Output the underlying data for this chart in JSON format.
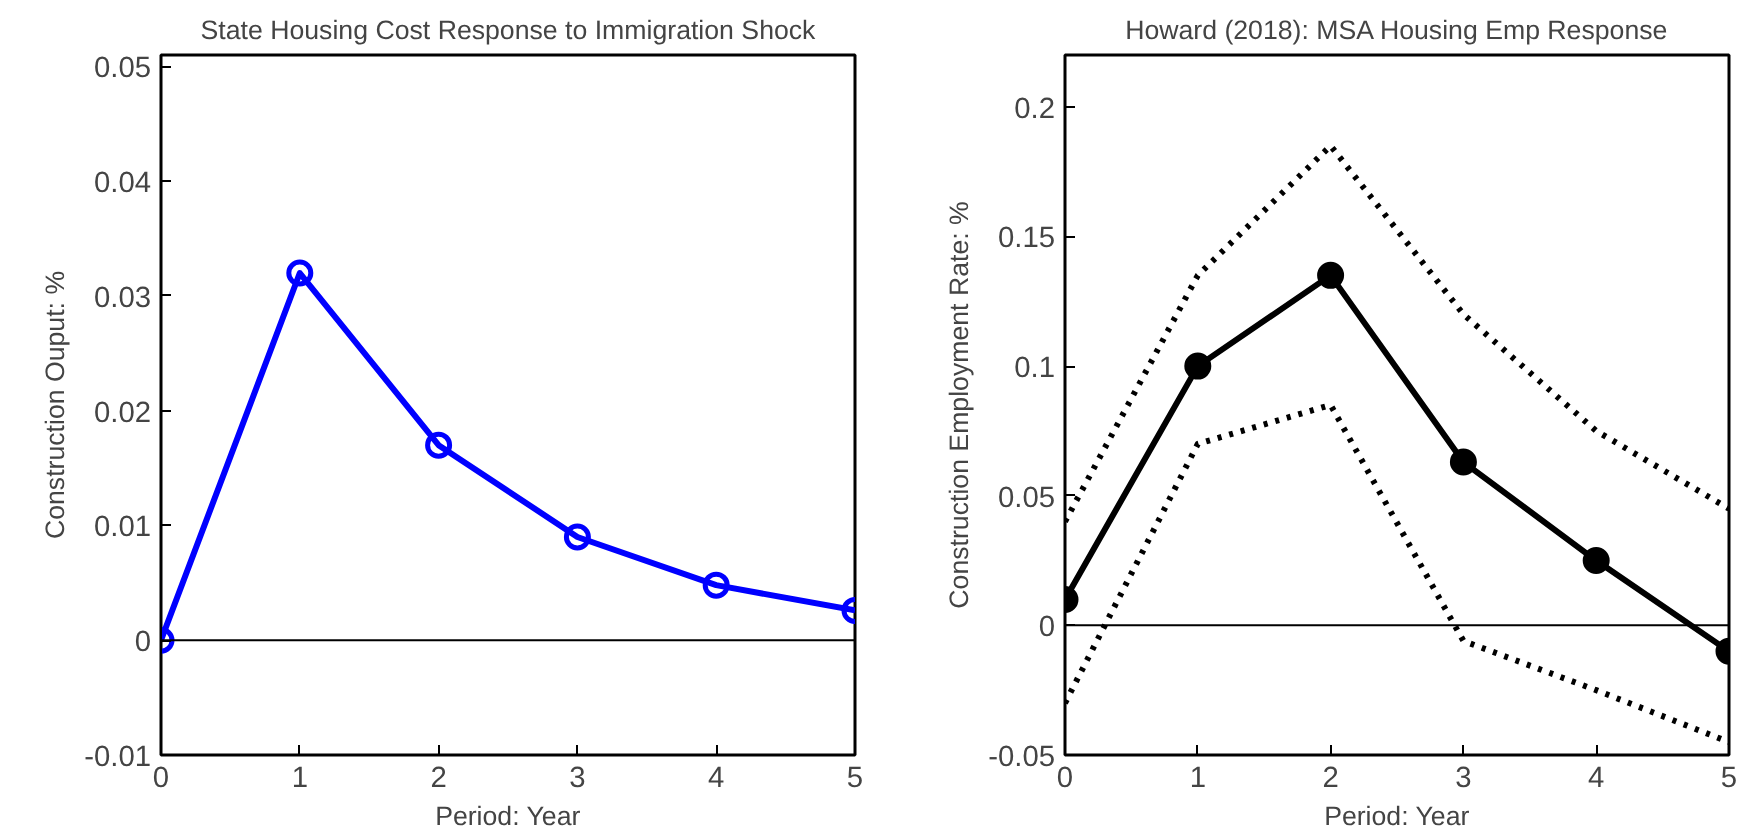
{
  "chart_data": [
    {
      "type": "line",
      "title": "State Housing Cost Response to Immigration Shock",
      "xlabel": "Period: Year",
      "ylabel": "Construction Ouput: %",
      "x": [
        0,
        1,
        2,
        3,
        4,
        5
      ],
      "series": [
        {
          "color": "#0000ff",
          "values": [
            0,
            0.032,
            0.017,
            0.009,
            0.0048,
            0.0026
          ],
          "marker": "circle",
          "line_style": "solid"
        }
      ],
      "xlim": [
        0,
        5
      ],
      "xticks": [
        0,
        1,
        2,
        3,
        4,
        5
      ],
      "ylim": [
        -0.01,
        0.051
      ],
      "yticks": [
        -0.01,
        0,
        0.01,
        0.02,
        0.03,
        0.04,
        0.05
      ],
      "grid": false,
      "ref_lines": [
        {
          "axis": "y",
          "value": 0,
          "color": "#000000",
          "line_style": "solid"
        }
      ]
    },
    {
      "type": "line",
      "title": "Howard (2018): MSA Housing Emp Response",
      "xlabel": "Period: Year",
      "ylabel": "Construction Employment Rate: %",
      "x": [
        0,
        1,
        2,
        3,
        4,
        5
      ],
      "series": [
        {
          "color": "#000000",
          "values": [
            0.04,
            0.135,
            0.185,
            0.12,
            0.075,
            0.045
          ],
          "marker": "none",
          "line_style": "dotted"
        },
        {
          "color": "#000000",
          "values": [
            0.01,
            0.1,
            0.135,
            0.063,
            0.025,
            -0.01
          ],
          "marker": "circle",
          "line_style": "solid"
        },
        {
          "color": "#000000",
          "values": [
            -0.03,
            0.07,
            0.085,
            -0.006,
            -0.025,
            -0.045
          ],
          "marker": "none",
          "line_style": "dotted"
        }
      ],
      "xlim": [
        0,
        5
      ],
      "xticks": [
        0,
        1,
        2,
        3,
        4,
        5
      ],
      "ylim": [
        -0.05,
        0.22
      ],
      "yticks": [
        -0.05,
        0,
        0.05,
        0.1,
        0.15,
        0.2
      ],
      "grid": false,
      "ref_lines": [
        {
          "axis": "y",
          "value": 0,
          "color": "#000000",
          "line_style": "solid"
        }
      ]
    }
  ]
}
